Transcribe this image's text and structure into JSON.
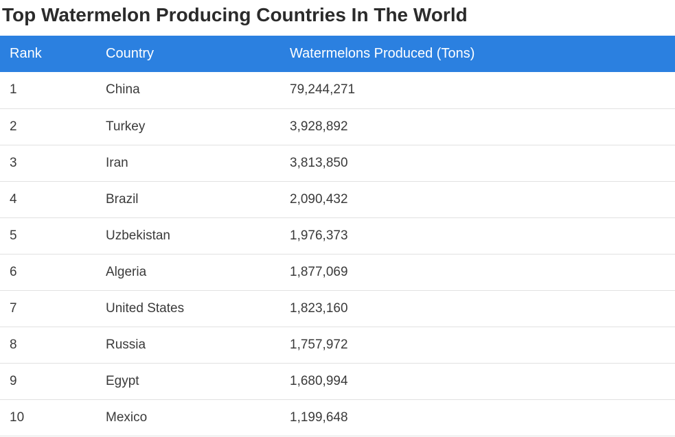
{
  "chart_data": {
    "type": "table",
    "title": "Top Watermelon Producing Countries In The World",
    "columns": [
      "Rank",
      "Country",
      "Watermelons Produced (Tons)"
    ],
    "rows": [
      [
        "1",
        "China",
        "79,244,271"
      ],
      [
        "2",
        "Turkey",
        "3,928,892"
      ],
      [
        "3",
        "Iran",
        "3,813,850"
      ],
      [
        "4",
        "Brazil",
        "2,090,432"
      ],
      [
        "5",
        "Uzbekistan",
        "1,976,373"
      ],
      [
        "6",
        "Algeria",
        "1,877,069"
      ],
      [
        "7",
        "United States",
        "1,823,160"
      ],
      [
        "8",
        "Russia",
        "1,757,972"
      ],
      [
        "9",
        "Egypt",
        "1,680,994"
      ],
      [
        "10",
        "Mexico",
        "1,199,648"
      ]
    ]
  },
  "colors": {
    "header_background": "#2b80e0",
    "header_text": "#ffffff",
    "row_divider": "#e1e1e1"
  }
}
